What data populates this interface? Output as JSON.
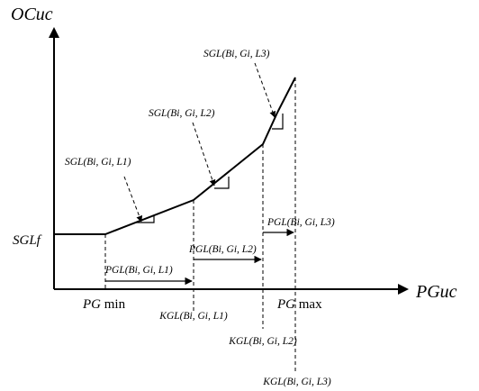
{
  "axes": {
    "y_label": "OCuc",
    "x_label": "PGuc"
  },
  "labels": {
    "sglf": "SGLf",
    "pgmin_it": "PG",
    "pgmin_rest": " min",
    "pgmax_it": "PG",
    "pgmax_rest": " max",
    "sgl_l1": "SGL(Bi, Gi, L1)",
    "sgl_l2": "SGL(Bi, Gi, L2)",
    "sgl_l3": "SGL(Bi, Gi, L3)",
    "pgl_l1": "PGL(Bi, Gi, L1)",
    "pgl_l2": "PGL(Bi, Gi, L2)",
    "pgl_l3": "PGL(Bi, Gi, L3)",
    "kgl_l1": "KGL(Bi, Gi, L1)",
    "kgl_l2": "KGL(Bi, Gi, L2)",
    "kgl_l3": "KGL(Bi, Gi, L3)"
  }
}
